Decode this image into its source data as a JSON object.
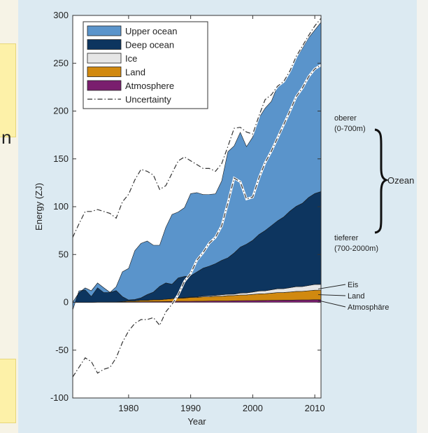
{
  "chart_data": {
    "type": "area",
    "title": "",
    "xlabel": "Year",
    "ylabel": "Energy (ZJ)",
    "xlim": [
      1971,
      2011
    ],
    "ylim": [
      -100,
      300
    ],
    "x_ticks": [
      1980,
      1990,
      2000,
      2010
    ],
    "y_ticks": [
      -100,
      -50,
      0,
      50,
      100,
      150,
      200,
      250,
      300
    ],
    "colors": {
      "upper_ocean": "#5a94cb",
      "deep_ocean": "#0d355f",
      "ice": "#e6e6e6",
      "land": "#d1890f",
      "atmosphere": "#7a1e6e",
      "uncertainty": "#333333"
    },
    "legend": {
      "placement": "top-left",
      "entries": [
        "Upper ocean",
        "Deep ocean",
        "Ice",
        "Land",
        "Atmosphere",
        "Uncertainty"
      ]
    },
    "x": [
      1971,
      1972,
      1973,
      1974,
      1975,
      1976,
      1977,
      1978,
      1979,
      1980,
      1981,
      1982,
      1983,
      1984,
      1985,
      1986,
      1987,
      1988,
      1989,
      1990,
      1991,
      1992,
      1993,
      1994,
      1995,
      1996,
      1997,
      1998,
      1999,
      2000,
      2001,
      2002,
      2003,
      2004,
      2005,
      2006,
      2007,
      2008,
      2009,
      2010,
      2011
    ],
    "series": [
      {
        "name": "Atmosphere",
        "values": [
          0,
          0,
          0,
          0,
          0.2,
          0.2,
          0.3,
          0.3,
          0.4,
          0.5,
          0.5,
          0.6,
          0.6,
          0.7,
          0.7,
          0.8,
          0.9,
          1.0,
          1.0,
          1.1,
          1.2,
          1.2,
          1.3,
          1.4,
          1.4,
          1.5,
          1.6,
          1.7,
          1.8,
          1.8,
          1.9,
          2.0,
          2.1,
          2.2,
          2.3,
          2.3,
          2.4,
          2.5,
          2.6,
          2.7,
          2.8
        ]
      },
      {
        "name": "Land",
        "values": [
          0,
          0,
          0,
          0,
          0,
          0,
          0,
          0,
          0.5,
          1,
          1,
          1.5,
          1.5,
          2,
          2,
          2.5,
          3,
          3.5,
          3.5,
          4,
          4,
          4.5,
          4.5,
          5,
          5,
          5.5,
          5.5,
          6,
          6,
          6.5,
          7,
          7,
          7.5,
          8,
          8,
          8.5,
          9,
          9,
          9.5,
          10,
          10
        ]
      },
      {
        "name": "Ice",
        "values": [
          0,
          0,
          0,
          0,
          0,
          0,
          0,
          0,
          0,
          0,
          0,
          0,
          0,
          0,
          0,
          0,
          0,
          0,
          0.5,
          0.5,
          0.5,
          1,
          1,
          1,
          1.5,
          1.5,
          1.5,
          2,
          2,
          2.5,
          3,
          3,
          3.5,
          4,
          4,
          4.5,
          5,
          5,
          5.5,
          6,
          6
        ]
      },
      {
        "name": "Deep ocean",
        "values": [
          0,
          10,
          15,
          12,
          20,
          15,
          10,
          12,
          5,
          1,
          1.5,
          2.5,
          6,
          8,
          14,
          17,
          15,
          21,
          22,
          22,
          26,
          29,
          31,
          33,
          36,
          38,
          43,
          48,
          51,
          54,
          59,
          63,
          67,
          71,
          75,
          80,
          84,
          87,
          92,
          95,
          97
        ]
      },
      {
        "name": "Upper ocean",
        "values": [
          -8,
          2,
          -2,
          -6,
          -5,
          -5,
          0,
          4,
          26,
          33,
          51,
          57,
          56,
          49,
          43,
          58,
          73,
          69,
          72,
          86,
          83,
          77,
          75,
          73,
          83,
          111,
          112,
          120,
          102,
          108,
          122,
          128,
          130,
          141,
          143,
          148,
          155,
          162,
          167,
          171,
          177
        ]
      }
    ],
    "uncertainty_upper": [
      68,
      82,
      95,
      95,
      97,
      95,
      93,
      88,
      105,
      113,
      128,
      139,
      137,
      133,
      118,
      122,
      135,
      148,
      152,
      148,
      144,
      140,
      140,
      137,
      145,
      163,
      182,
      183,
      178,
      176,
      195,
      212,
      217,
      226,
      231,
      242,
      257,
      268,
      279,
      289,
      297
    ],
    "uncertainty_lower": [
      -78,
      -68,
      -58,
      -62,
      -74,
      -70,
      -68,
      -58,
      -42,
      -30,
      -22,
      -18,
      -18,
      -16,
      -24,
      -10,
      -2,
      8,
      22,
      30,
      44,
      52,
      62,
      68,
      80,
      104,
      130,
      126,
      108,
      110,
      130,
      146,
      158,
      172,
      186,
      200,
      215,
      224,
      236,
      244,
      248
    ],
    "annotations": {
      "oberer": [
        "oberer",
        "(0-700m)"
      ],
      "tieferer": [
        "tieferer",
        "(700-2000m)"
      ],
      "ozean": "Ozean",
      "eis": "Eis",
      "land": "Land",
      "atmosphaere": "Atmosphäre"
    }
  }
}
